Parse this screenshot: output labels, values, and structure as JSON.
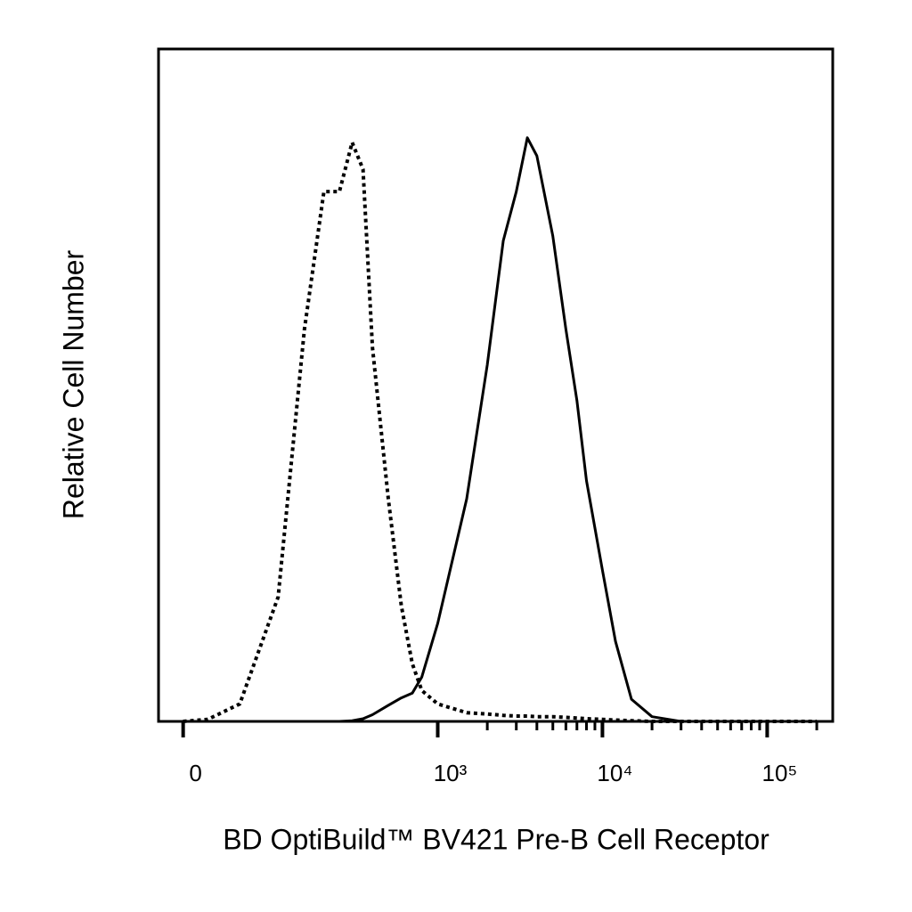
{
  "chart_data": {
    "type": "line",
    "y_label": "Relative Cell Number",
    "x_label": "BD OptiBuild™ BV421 Pre-B Cell Receptor",
    "xscale": "biexponential",
    "xlim": [
      -20,
      250000
    ],
    "ylim": [
      0,
      100
    ],
    "xticks": [
      0,
      {
        "value": 1000,
        "label": "10³"
      },
      {
        "value": 10000,
        "label": "10⁴"
      },
      {
        "value": 100000,
        "label": "10⁵"
      }
    ],
    "minor_xticks": [
      2000,
      3000,
      4000,
      5000,
      6000,
      7000,
      8000,
      9000,
      20000,
      30000,
      40000,
      50000,
      60000,
      70000,
      80000,
      90000,
      200000
    ],
    "x": [
      0,
      20,
      50,
      100,
      150,
      200,
      250,
      300,
      350,
      400,
      500,
      600,
      700,
      800,
      1000,
      1500,
      2000,
      2500,
      3000,
      3500,
      4000,
      5000,
      6000,
      7000,
      8000,
      10000,
      12000,
      15000,
      20000,
      30000,
      50000,
      100000,
      200000
    ],
    "series": [
      {
        "style": "dotted",
        "color": "#000000",
        "values": [
          0,
          0.3,
          2.6,
          18.5,
          58.3,
          78.8,
          78.8,
          86.1,
          82.1,
          55.6,
          33.1,
          17.2,
          8.6,
          4.6,
          2.6,
          1.3,
          1.1,
          0.9,
          0.8,
          0.8,
          0.7,
          0.7,
          0.6,
          0.5,
          0.4,
          0.3,
          0.2,
          0.1,
          0,
          0,
          0,
          0,
          0
        ]
      },
      {
        "style": "solid",
        "color": "#000000",
        "values": [
          0,
          0,
          0,
          0,
          0,
          0,
          0,
          0.1,
          0.4,
          1.0,
          2.4,
          3.5,
          4.2,
          6.6,
          14.6,
          33.1,
          53,
          71.5,
          78.8,
          86.8,
          84.1,
          72.2,
          58.3,
          47.7,
          35.8,
          22.5,
          11.9,
          3.3,
          0.7,
          0,
          0,
          0,
          0
        ]
      }
    ]
  }
}
